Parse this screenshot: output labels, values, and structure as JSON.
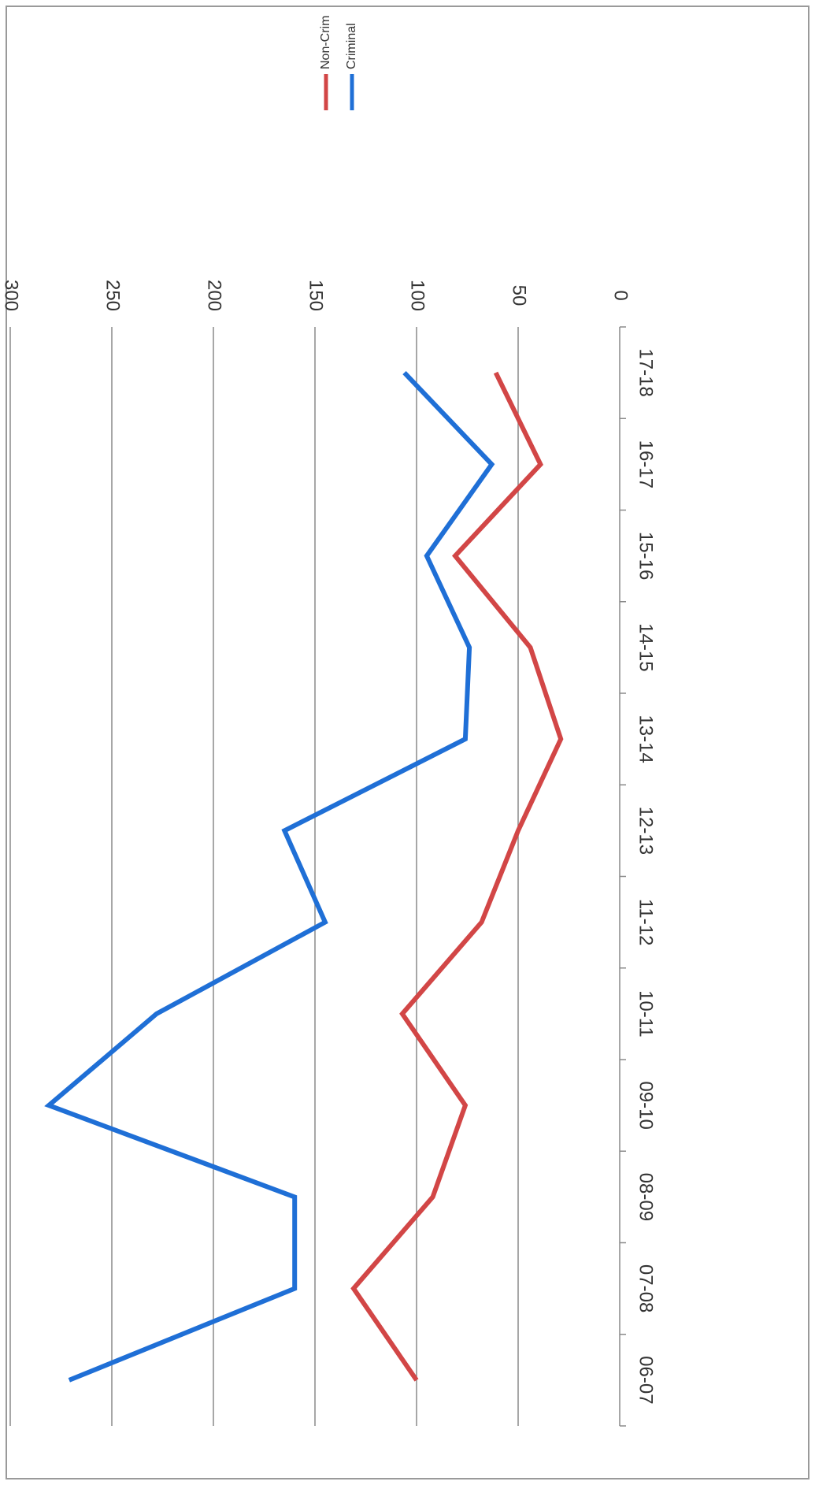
{
  "chart_data": {
    "type": "line",
    "title": "",
    "xlabel": "",
    "ylabel": "",
    "categories": [
      "06-07",
      "07-08",
      "08-09",
      "09-10",
      "10-11",
      "11-12",
      "12-13",
      "13-14",
      "14-15",
      "15-16",
      "16-17",
      "17-18"
    ],
    "series": [
      {
        "name": "Criminal",
        "color": "#1f6fd6",
        "values": [
          271,
          160,
          160,
          281,
          228,
          145,
          165,
          76,
          74,
          95,
          63,
          106
        ]
      },
      {
        "name": "Non-Crim",
        "color": "#d24646",
        "values": [
          100,
          131,
          92,
          76,
          107,
          68,
          50,
          29,
          44,
          81,
          39,
          61
        ]
      }
    ],
    "ylim": [
      0,
      300
    ],
    "yticks": [
      0,
      50,
      100,
      150,
      200,
      250,
      300
    ],
    "grid": true,
    "legend": "top-right",
    "orientation": "rotated-180"
  }
}
